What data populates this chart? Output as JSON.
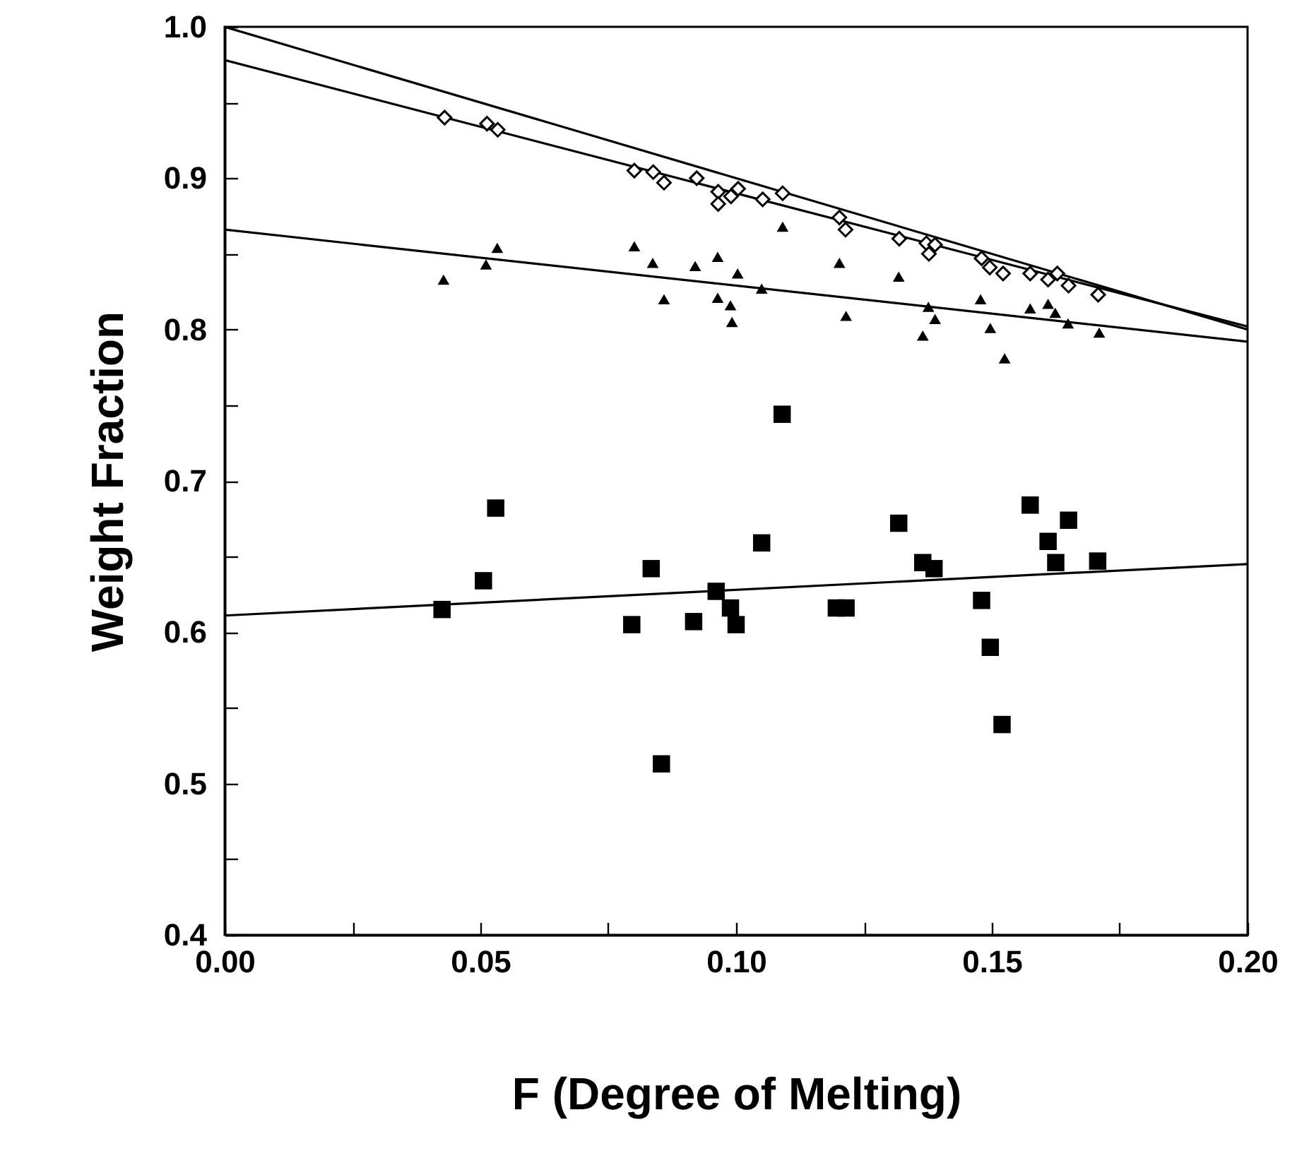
{
  "chart_data": {
    "type": "scatter",
    "xlabel": "F (Degree of Melting)",
    "ylabel": "Weight Fraction",
    "xlim": [
      0,
      0.2
    ],
    "ylim": [
      0.4,
      1.0
    ],
    "xticks": [
      {
        "value": 0,
        "label": "0.00"
      },
      {
        "value": 0.025,
        "label": null
      },
      {
        "value": 0.05,
        "label": "0.05"
      },
      {
        "value": 0.075,
        "label": null
      },
      {
        "value": 0.1,
        "label": "0.10"
      },
      {
        "value": 0.125,
        "label": null
      },
      {
        "value": 0.15,
        "label": "0.15"
      },
      {
        "value": 0.175,
        "label": null
      },
      {
        "value": 0.2,
        "label": "0.20"
      }
    ],
    "yticks": [
      0.4,
      {
        "value": 0.45,
        "label": null
      },
      0.5,
      {
        "value": 0.55,
        "label": null
      },
      0.6,
      {
        "value": 0.65,
        "label": null
      },
      0.7,
      {
        "value": 0.75,
        "label": null
      },
      0.8,
      {
        "value": 0.85,
        "label": null
      },
      0.9,
      {
        "value": 0.95,
        "label": null
      },
      {
        "value": 1.0,
        "label": "1.0"
      }
    ],
    "grid": false,
    "series": [
      {
        "type": "line",
        "color": "#000000",
        "marker": "none",
        "x": [
          0,
          0.2
        ],
        "values": [
          1.0,
          0.8
        ]
      },
      {
        "type": "line",
        "color": "#000000",
        "marker": "none",
        "x": [
          0,
          0.2
        ],
        "values": [
          0.978,
          0.802
        ]
      },
      {
        "type": "line",
        "color": "#000000",
        "marker": "none",
        "x": [
          0,
          0.2
        ],
        "values": [
          0.866,
          0.792
        ]
      },
      {
        "type": "line",
        "color": "#000000",
        "marker": "none",
        "x": [
          0,
          0.2
        ],
        "values": [
          0.611,
          0.645
        ]
      },
      {
        "color": "#000000",
        "marker": "diamond",
        "x": [
          0.043,
          0.0513,
          0.0534,
          0.0801,
          0.0838,
          0.0859,
          0.0923,
          0.0965,
          0.0965,
          0.099,
          0.1004,
          0.1052,
          0.1091,
          0.1202,
          0.1214,
          0.1319,
          0.1372,
          0.1377,
          0.1389,
          0.148,
          0.1496,
          0.1522,
          0.1575,
          0.161,
          0.1628,
          0.165,
          0.1708
        ],
        "values": [
          0.94,
          0.936,
          0.932,
          0.905,
          0.904,
          0.897,
          0.9,
          0.891,
          0.883,
          0.888,
          0.893,
          0.886,
          0.89,
          0.874,
          0.866,
          0.86,
          0.857,
          0.85,
          0.856,
          0.847,
          0.841,
          0.837,
          0.837,
          0.833,
          0.837,
          0.829,
          0.823
        ]
      },
      {
        "color": "#000000",
        "marker": "triangle",
        "x": [
          0.0428,
          0.0511,
          0.0533,
          0.0801,
          0.0837,
          0.0859,
          0.092,
          0.0964,
          0.0964,
          0.0989,
          0.0992,
          0.1003,
          0.105,
          0.1091,
          0.1202,
          0.1215,
          0.1318,
          0.1376,
          0.1389,
          0.1365,
          0.1478,
          0.1497,
          0.1525,
          0.1575,
          0.161,
          0.1624,
          0.1649,
          0.171
        ],
        "values": [
          0.833,
          0.843,
          0.854,
          0.855,
          0.844,
          0.82,
          0.842,
          0.848,
          0.821,
          0.816,
          0.805,
          0.837,
          0.827,
          0.868,
          0.844,
          0.809,
          0.835,
          0.815,
          0.807,
          0.796,
          0.82,
          0.801,
          0.781,
          0.814,
          0.817,
          0.811,
          0.804,
          0.798
        ]
      },
      {
        "color": "#000000",
        "marker": "square",
        "x": [
          0.0425,
          0.0506,
          0.053,
          0.0796,
          0.0834,
          0.0854,
          0.0917,
          0.0961,
          0.0989,
          0.1,
          0.105,
          0.109,
          0.1196,
          0.1215,
          0.1318,
          0.1365,
          0.1387,
          0.148,
          0.1497,
          0.152,
          0.1575,
          0.161,
          0.1625,
          0.165,
          0.1707
        ],
        "values": [
          0.615,
          0.634,
          0.682,
          0.605,
          0.642,
          0.513,
          0.607,
          0.627,
          0.616,
          0.605,
          0.659,
          0.744,
          0.616,
          0.616,
          0.672,
          0.646,
          0.642,
          0.621,
          0.59,
          0.539,
          0.684,
          0.66,
          0.646,
          0.674,
          0.647
        ]
      }
    ]
  }
}
